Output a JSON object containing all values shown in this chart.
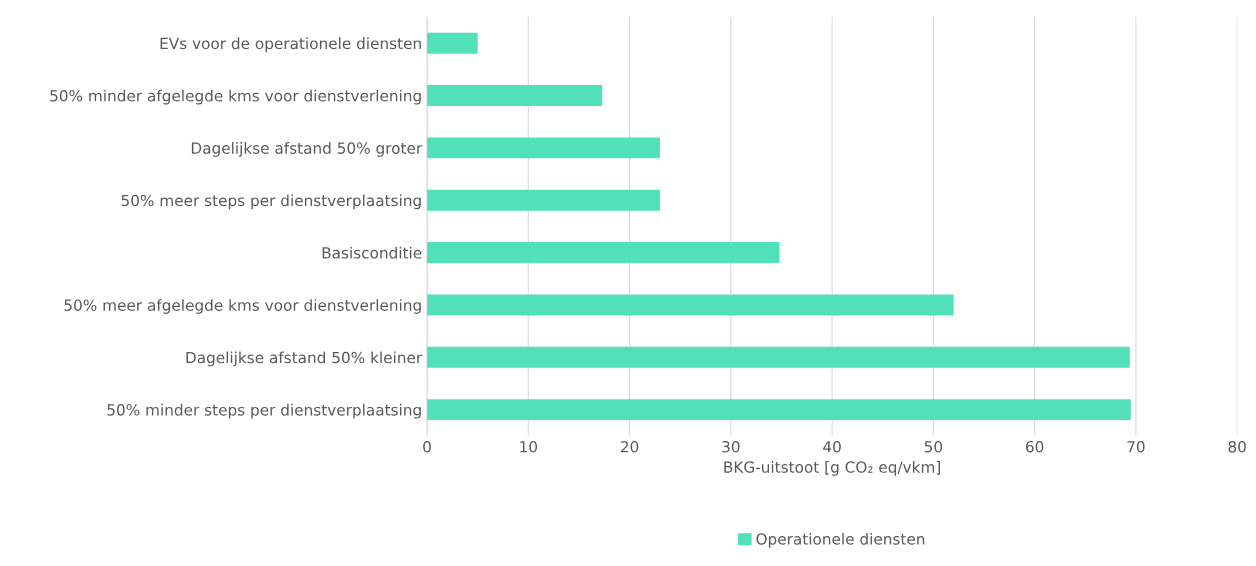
{
  "chart_data": {
    "type": "bar",
    "orientation": "horizontal",
    "xlabel": "BKG-uitstoot [g CO₂ eq/vkm]",
    "categories": [
      "EVs voor de operationele diensten",
      "50% minder afgelegde kms voor dienstverlening",
      "Dagelijkse afstand 50% groter",
      "50% meer steps per dienstverplaatsing",
      "Basisconditie",
      "50% meer afgelegde kms voor dienstverlening",
      "Dagelijkse afstand 50% kleiner",
      "50% minder steps per dienstverplaatsing"
    ],
    "series": [
      {
        "name": "Operationele diensten",
        "color": "#52e0bb",
        "values": [
          5.0,
          17.3,
          23.0,
          23.0,
          34.8,
          52.0,
          69.4,
          69.5
        ]
      }
    ],
    "xlim": [
      0,
      80
    ],
    "xticks": [
      0,
      10,
      20,
      30,
      40,
      50,
      60,
      70,
      80
    ],
    "grid": "x",
    "legend": "bottom"
  }
}
